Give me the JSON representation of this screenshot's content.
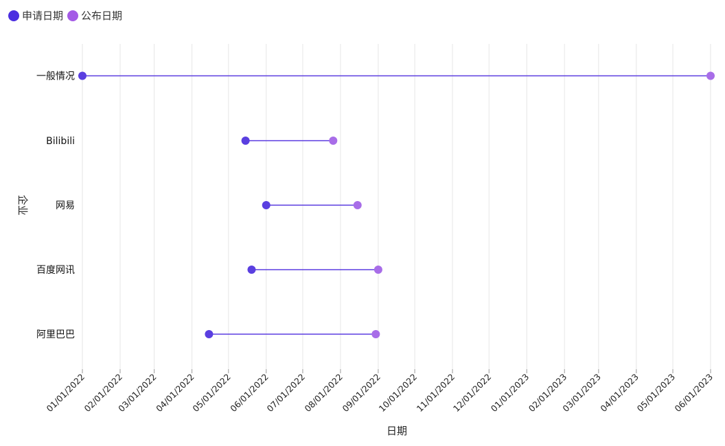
{
  "legend": [
    {
      "label": "申请日期",
      "color": "#4b2ee0"
    },
    {
      "label": "公布日期",
      "color": "#a45be6"
    }
  ],
  "chart_data": {
    "type": "dumbbell",
    "xlabel": "日期",
    "ylabel": "企业",
    "x_ticks": [
      "01/01/2022",
      "02/01/2022",
      "03/01/2022",
      "04/01/2022",
      "05/01/2022",
      "06/01/2022",
      "07/01/2022",
      "08/01/2022",
      "09/01/2022",
      "10/01/2022",
      "11/01/2022",
      "12/01/2022",
      "01/01/2023",
      "02/01/2023",
      "03/01/2023",
      "04/01/2023",
      "05/01/2023",
      "06/01/2023"
    ],
    "xlim": [
      "2022-01-01",
      "2023-06-01"
    ],
    "grid": true,
    "legend_position": "top-left",
    "colors": {
      "start": "#5a3fe0",
      "end": "#a86de8",
      "line": "#5b3de0"
    },
    "series": [
      {
        "name": "申请日期",
        "color": "#4b2ee0"
      },
      {
        "name": "公布日期",
        "color": "#a45be6"
      }
    ],
    "categories": [
      "一般情况",
      "Bilibili",
      "网易",
      "百度网讯",
      "阿里巴巴"
    ],
    "records": [
      {
        "category": "一般情况",
        "start": "2022-01-01",
        "end": "2023-06-01"
      },
      {
        "category": "Bilibili",
        "start": "2022-05-15",
        "end": "2022-07-26"
      },
      {
        "category": "网易",
        "start": "2022-06-01",
        "end": "2022-08-15"
      },
      {
        "category": "百度网讯",
        "start": "2022-05-20",
        "end": "2022-09-01"
      },
      {
        "category": "阿里巴巴",
        "start": "2022-04-15",
        "end": "2022-08-30"
      }
    ]
  }
}
